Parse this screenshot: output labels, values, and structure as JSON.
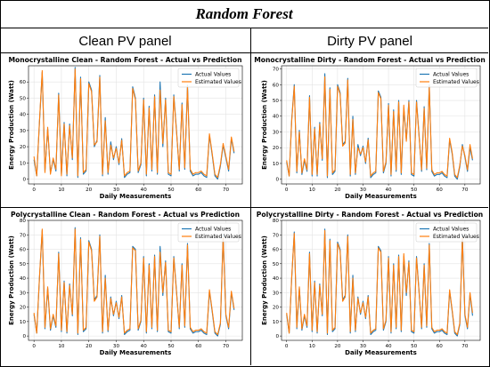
{
  "title": "Random Forest",
  "columns": [
    "Clean PV panel",
    "Dirty PV panel"
  ],
  "colors": {
    "actual": "#1f77b4",
    "estimated": "#ff7f0e"
  },
  "chart_data": [
    {
      "type": "line",
      "title": "Monocrystalline Clean  - Random Forest - Actual vs Prediction",
      "xlabel": "Daily Measurements",
      "ylabel": "Energy Production (Watt)",
      "xlim": [
        -2,
        76
      ],
      "ylim": [
        -3,
        70
      ],
      "xticks": [
        0,
        10,
        20,
        30,
        40,
        50,
        60,
        70
      ],
      "yticks": [
        0,
        10,
        20,
        30,
        40,
        50,
        60
      ],
      "legend": "top-right",
      "grid": true,
      "series": [
        {
          "name": "Actual Values",
          "values": [
            12,
            2,
            35,
            66,
            5,
            31,
            4,
            12,
            5,
            53,
            3,
            35,
            2,
            34,
            12,
            69,
            1,
            63,
            3,
            5,
            60,
            55,
            20,
            24,
            64,
            2,
            38,
            3,
            23,
            12,
            20,
            9,
            25,
            1,
            3,
            4,
            57,
            50,
            4,
            9,
            50,
            2,
            45,
            5,
            52,
            3,
            60,
            20,
            50,
            3,
            2,
            52,
            30,
            5,
            47,
            6,
            58,
            5,
            2,
            3,
            3,
            4,
            2,
            1,
            27,
            15,
            2,
            0,
            8,
            21,
            13,
            5,
            25,
            16
          ]
        },
        {
          "name": "Estimated Values",
          "values": [
            14,
            2,
            36,
            67,
            4,
            32,
            3,
            13,
            6,
            52,
            2,
            34,
            3,
            33,
            13,
            68,
            2,
            62,
            4,
            6,
            59,
            54,
            21,
            23,
            63,
            3,
            36,
            4,
            21,
            13,
            19,
            10,
            24,
            2,
            4,
            5,
            56,
            49,
            5,
            10,
            49,
            3,
            44,
            6,
            51,
            4,
            55,
            22,
            49,
            4,
            3,
            51,
            29,
            6,
            46,
            7,
            57,
            6,
            3,
            4,
            4,
            5,
            3,
            2,
            28,
            16,
            3,
            1,
            9,
            22,
            14,
            6,
            26,
            17
          ]
        }
      ]
    },
    {
      "type": "line",
      "title": "Monocrystalline Dirty - Random Forest - Actual vs Prediction",
      "xlabel": "Daily Measurements",
      "ylabel": "Energy Production (Watt)",
      "xlim": [
        -2,
        76
      ],
      "ylim": [
        -3,
        72
      ],
      "xticks": [
        0,
        10,
        20,
        30,
        40,
        50,
        60,
        70
      ],
      "yticks": [
        0,
        10,
        20,
        30,
        40,
        50,
        60,
        70
      ],
      "legend": "top-right",
      "grid": true,
      "series": [
        {
          "name": "Actual Values",
          "values": [
            11,
            2,
            38,
            60,
            4,
            31,
            3,
            12,
            5,
            53,
            2,
            33,
            2,
            36,
            12,
            67,
            1,
            58,
            3,
            5,
            60,
            55,
            22,
            24,
            64,
            2,
            40,
            3,
            22,
            15,
            21,
            10,
            26,
            1,
            3,
            4,
            56,
            52,
            4,
            10,
            48,
            2,
            44,
            5,
            50,
            3,
            45,
            25,
            50,
            3,
            2,
            50,
            28,
            5,
            46,
            6,
            60,
            5,
            2,
            3,
            3,
            4,
            2,
            1,
            25,
            16,
            2,
            0,
            8,
            22,
            14,
            5,
            20,
            12
          ]
        },
        {
          "name": "Estimated Values",
          "values": [
            12,
            2,
            37,
            59,
            5,
            30,
            4,
            13,
            6,
            52,
            3,
            32,
            3,
            35,
            13,
            65,
            2,
            57,
            4,
            6,
            59,
            54,
            21,
            23,
            63,
            3,
            38,
            4,
            20,
            16,
            20,
            11,
            25,
            2,
            4,
            5,
            55,
            51,
            5,
            11,
            47,
            3,
            43,
            6,
            49,
            4,
            47,
            24,
            49,
            4,
            3,
            49,
            27,
            6,
            45,
            7,
            59,
            6,
            3,
            4,
            4,
            5,
            3,
            2,
            26,
            17,
            3,
            1,
            9,
            21,
            15,
            6,
            22,
            13
          ]
        }
      ]
    },
    {
      "type": "line",
      "title": "Polycrystalline Clean - Random Forest - Actual vs Prediction",
      "xlabel": "Daily Measurements",
      "ylabel": "Energy Production (Watt)",
      "xlim": [
        -2,
        76
      ],
      "ylim": [
        -3,
        80
      ],
      "xticks": [
        0,
        10,
        20,
        30,
        40,
        50,
        60,
        70
      ],
      "yticks": [
        0,
        10,
        20,
        30,
        40,
        50,
        60,
        70,
        80
      ],
      "legend": "top-right",
      "grid": true,
      "series": [
        {
          "name": "Actual Values",
          "values": [
            15,
            2,
            40,
            73,
            5,
            33,
            4,
            14,
            6,
            58,
            3,
            38,
            2,
            36,
            14,
            75,
            1,
            68,
            3,
            5,
            66,
            60,
            25,
            28,
            70,
            2,
            42,
            3,
            27,
            14,
            24,
            12,
            28,
            1,
            3,
            4,
            62,
            60,
            4,
            10,
            55,
            2,
            50,
            5,
            56,
            3,
            62,
            28,
            52,
            3,
            2,
            55,
            31,
            5,
            50,
            6,
            64,
            5,
            2,
            3,
            3,
            4,
            2,
            1,
            31,
            17,
            2,
            0,
            8,
            70,
            14,
            5,
            30,
            18
          ]
        },
        {
          "name": "Estimated Values",
          "values": [
            16,
            2,
            41,
            74,
            6,
            34,
            5,
            15,
            7,
            57,
            4,
            37,
            3,
            35,
            15,
            74,
            2,
            67,
            4,
            6,
            65,
            59,
            24,
            27,
            69,
            3,
            40,
            4,
            26,
            15,
            23,
            13,
            27,
            2,
            4,
            5,
            61,
            59,
            5,
            11,
            54,
            3,
            49,
            6,
            55,
            4,
            58,
            30,
            51,
            4,
            3,
            54,
            30,
            6,
            49,
            7,
            63,
            6,
            3,
            4,
            4,
            5,
            3,
            2,
            32,
            18,
            3,
            1,
            9,
            68,
            15,
            6,
            31,
            19
          ]
        }
      ]
    },
    {
      "type": "line",
      "title": "Polycrystalline Dirty - Random Forest - Actual vs Prediction",
      "xlabel": "Daily Measurements",
      "ylabel": "Energy Production (Watt)",
      "xlim": [
        -2,
        76
      ],
      "ylim": [
        -3,
        80
      ],
      "xticks": [
        0,
        10,
        20,
        30,
        40,
        50,
        60,
        70
      ],
      "yticks": [
        0,
        10,
        20,
        30,
        40,
        50,
        60,
        70,
        80
      ],
      "legend": "top-right",
      "grid": true,
      "series": [
        {
          "name": "Actual Values",
          "values": [
            15,
            2,
            40,
            72,
            5,
            33,
            4,
            14,
            6,
            58,
            3,
            38,
            2,
            36,
            14,
            74,
            1,
            67,
            3,
            5,
            65,
            60,
            25,
            28,
            70,
            2,
            42,
            3,
            27,
            15,
            24,
            12,
            28,
            1,
            3,
            4,
            62,
            59,
            4,
            10,
            55,
            2,
            50,
            5,
            56,
            3,
            55,
            28,
            52,
            3,
            2,
            55,
            31,
            5,
            50,
            6,
            64,
            5,
            2,
            3,
            3,
            4,
            2,
            1,
            31,
            17,
            2,
            0,
            8,
            70,
            14,
            5,
            29,
            14
          ]
        },
        {
          "name": "Estimated Values",
          "values": [
            16,
            2,
            41,
            71,
            6,
            34,
            5,
            15,
            7,
            57,
            4,
            37,
            3,
            35,
            15,
            73,
            2,
            66,
            4,
            6,
            64,
            59,
            24,
            27,
            69,
            3,
            40,
            4,
            26,
            16,
            23,
            13,
            27,
            2,
            4,
            5,
            61,
            58,
            5,
            11,
            54,
            3,
            49,
            6,
            55,
            4,
            57,
            30,
            51,
            4,
            3,
            54,
            30,
            6,
            49,
            7,
            63,
            6,
            3,
            4,
            4,
            5,
            3,
            2,
            32,
            18,
            3,
            1,
            9,
            68,
            15,
            6,
            30,
            16
          ]
        }
      ]
    }
  ]
}
